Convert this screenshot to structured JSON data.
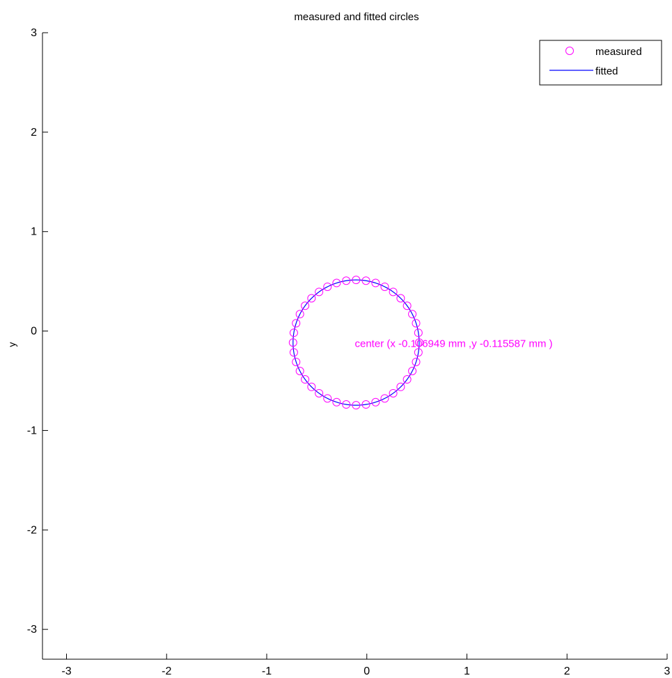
{
  "chart_data": {
    "type": "scatter",
    "title": "measured and fitted circles",
    "xlabel": "",
    "ylabel": "y",
    "xlim": [
      -3.24,
      3.0
    ],
    "ylim": [
      -3.3,
      3.0
    ],
    "xticks": [
      -3,
      -2,
      -1,
      0,
      1,
      2,
      3
    ],
    "yticks": [
      -3,
      -2,
      -1,
      0,
      1,
      2,
      3
    ],
    "xtick_labels": [
      "-3",
      "-2",
      "-1",
      "0",
      "1",
      "2",
      "3"
    ],
    "ytick_labels": [
      "-3",
      "-2",
      "-1",
      "0",
      "1",
      "2",
      "3"
    ],
    "grid": false,
    "legend": {
      "location": "top-right",
      "entries": [
        "measured",
        "fitted"
      ]
    },
    "series": [
      {
        "name": "measured",
        "kind": "markers",
        "marker": "circle",
        "color": "#ff00ff",
        "center": [
          -0.107,
          -0.116
        ],
        "radius": 0.63,
        "count": 40
      },
      {
        "name": "fitted",
        "kind": "line",
        "color": "#0000ff",
        "center": [
          -0.107,
          -0.116
        ],
        "radius": 0.63
      }
    ],
    "annotation": {
      "text": "center (x -0.106949 mm ,y -0.115587 mm )",
      "x": -0.12,
      "y": -0.12,
      "color": "#ff00ff"
    }
  }
}
